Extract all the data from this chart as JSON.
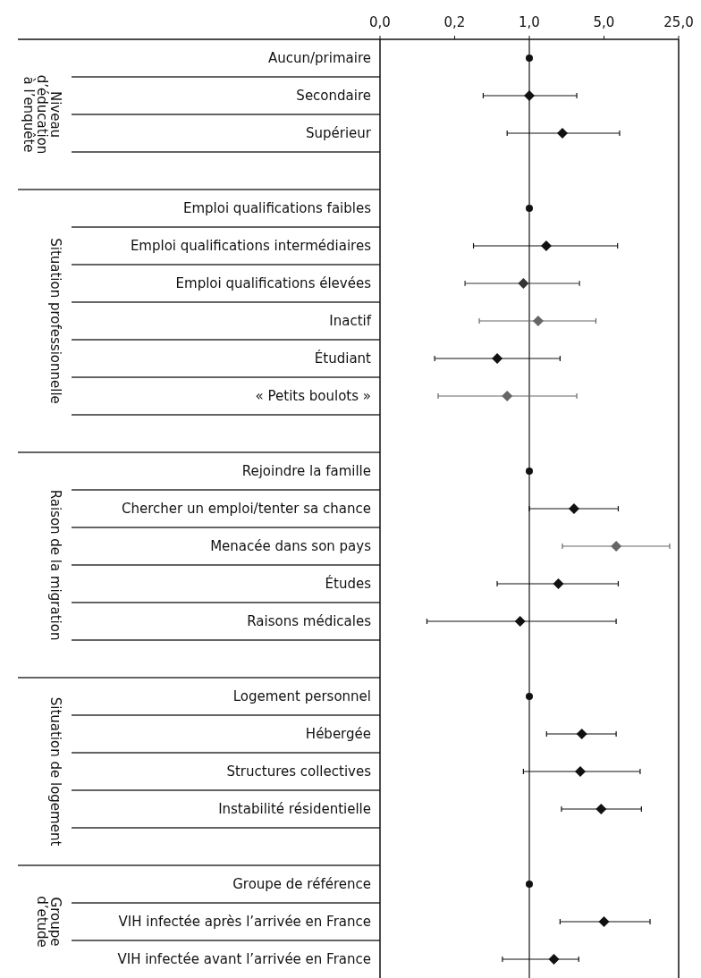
{
  "chart_data": {
    "type": "scatter",
    "orientation": "horizontal",
    "log": "x",
    "categories": [
      "Aucun/primaire",
      "Secondaire",
      "Supérieur",
      null,
      "Emploi qualifications faibles",
      "Emploi qualifications intermédiaires",
      "Emploi qualifications élevées",
      "Inactif",
      "Étudiant",
      "« Petits boulots »",
      null,
      "Rejoindre la famille",
      "Chercher un emploi/tenter sa chance",
      "Menacée dans son pays",
      "Études",
      "Raisons médicales",
      null,
      "Logement personnel",
      "Hébergée",
      "Structures collectives",
      "Instabilité résidentielle",
      null,
      "Groupe de référence",
      "VIH infectée après l’arrivée en France",
      "VIH infectée avant l’arrivée en France"
    ],
    "xlim": [
      0.04,
      25
    ],
    "xticks": [
      {
        "value": 0.04,
        "label": "0,0"
      },
      {
        "value": 0.2,
        "label": "0,2"
      },
      {
        "value": 1,
        "label": "1,0"
      },
      {
        "value": 5,
        "label": "5,0"
      },
      {
        "value": 25,
        "label": "25,0"
      }
    ],
    "ref_lines": [
      {
        "axis": "x",
        "value": 1,
        "color": "#111111"
      }
    ],
    "annotations": [
      "Niveau\nd’éducation\nà l’enquête",
      "Situation professionnelle",
      "Raison de la migration",
      "Situation de logement",
      "Groupe\nd’etude"
    ],
    "series": [
      {
        "marker": "circle",
        "color": "#111111",
        "values": [
          1,
          null,
          null,
          null,
          1,
          null,
          null,
          null,
          null,
          null,
          null,
          1,
          null,
          null,
          null,
          null,
          null,
          1,
          null,
          null,
          null,
          null,
          1,
          null,
          null
        ]
      },
      {
        "marker": "diamond",
        "color": "#111111",
        "colors": [
          null,
          "#111111",
          "#111111",
          null,
          null,
          "#111111",
          "#333333",
          "#666666",
          "#111111",
          "#666666",
          null,
          null,
          "#111111",
          "#666666",
          "#111111",
          "#111111",
          null,
          null,
          "#111111",
          "#111111",
          "#111111",
          null,
          null,
          "#111111",
          null
        ],
        "values": [
          null,
          1.0,
          2.04,
          null,
          null,
          1.44,
          0.88,
          1.21,
          0.5,
          0.62,
          null,
          null,
          2.62,
          6.5,
          1.87,
          0.82,
          null,
          null,
          3.1,
          3.0,
          4.7,
          null,
          null,
          5.0,
          1.7
        ],
        "errors": [
          null,
          [
            0.37,
            2.78
          ],
          [
            0.62,
            7.0
          ],
          null,
          null,
          [
            0.3,
            6.7
          ],
          [
            0.25,
            2.95
          ],
          [
            0.34,
            4.2
          ],
          [
            0.13,
            1.94
          ],
          [
            0.14,
            2.78
          ],
          null,
          null,
          [
            1.0,
            6.8
          ],
          [
            2.04,
            20.6
          ],
          [
            0.5,
            6.8
          ],
          [
            0.11,
            6.5
          ],
          null,
          null,
          [
            1.45,
            6.5
          ],
          [
            0.88,
            10.9
          ],
          [
            2.0,
            11.2
          ],
          null,
          null,
          [
            1.94,
            13.5
          ],
          [
            0.56,
            2.9
          ]
        ]
      }
    ]
  }
}
